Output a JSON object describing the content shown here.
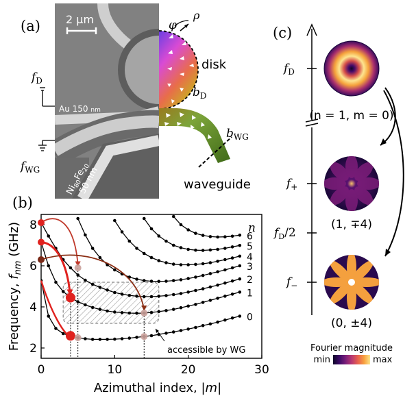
{
  "panel_a": {
    "label": "(a)",
    "scale_bar": "2 μm",
    "phi": "φ",
    "rho": "ρ",
    "disk": "disk",
    "b_d": "b",
    "b_d_sub": "D",
    "b_wg": "b",
    "b_wg_sub": "WG",
    "f_d": "f",
    "f_d_sub": "D",
    "f_wg": "f",
    "f_wg_sub": "WG",
    "au": "Au 150",
    "au_unit": "nm",
    "nife_1": "Ni",
    "nife_1_sub": "80",
    "nife_2": "Fe",
    "nife_2_sub": "20",
    "nife_thick": "50 nm",
    "waveguide": "waveguide"
  },
  "panel_b": {
    "label": "(b)",
    "accessible": "accessible by WG",
    "n_header": "n",
    "branch_labels": [
      "6",
      "5",
      "4",
      "3",
      "2",
      "1",
      "0"
    ]
  },
  "panel_c": {
    "label": "(c)",
    "f_d": "f",
    "f_d_sub": "D",
    "f_plus": "f",
    "f_plus_sub": "+",
    "f_half": "f",
    "f_half_sub": "D",
    "f_half_tail": "/2",
    "f_minus": "f",
    "f_minus_sub": "−",
    "mode1": "(n = 1, m = 0)",
    "mode2": "(1, ∓4)",
    "mode3": "(0, ±4)",
    "colorbar_title": "Fourier magnitude",
    "colorbar_min": "min",
    "colorbar_max": "max",
    "colorbar_colors": [
      "#0d0628",
      "#3c0a66",
      "#7b1f7a",
      "#b73771",
      "#e7604e",
      "#f8a13f",
      "#fbe38a"
    ]
  },
  "chart_data": {
    "type": "line",
    "xlabel": "Azimuthal index, |m|",
    "ylabel": "Frequency, f_nm (GHz)",
    "xlim": [
      0,
      30
    ],
    "ylim": [
      1.5,
      8.5
    ],
    "x_ticks": [
      0,
      10,
      20,
      30
    ],
    "y_ticks": [
      2,
      4,
      6,
      8
    ],
    "series": [
      {
        "name": "0",
        "x": [
          0,
          1,
          2,
          3,
          4,
          5,
          6,
          7,
          8,
          9,
          10,
          11,
          12,
          13,
          14,
          15,
          16,
          17,
          18,
          19,
          20,
          21,
          22,
          23,
          24,
          25,
          26,
          27
        ],
        "values": [
          5.28,
          3.55,
          2.95,
          2.7,
          2.59,
          2.5,
          2.45,
          2.42,
          2.42,
          2.42,
          2.43,
          2.45,
          2.48,
          2.52,
          2.56,
          2.6,
          2.66,
          2.72,
          2.78,
          2.85,
          2.92,
          3.0,
          3.09,
          3.17,
          3.26,
          3.36,
          3.46,
          3.55
        ]
      },
      {
        "name": "1",
        "x": [
          0,
          1,
          2,
          3,
          4,
          5,
          6,
          7,
          8,
          9,
          10,
          11,
          12,
          13,
          14,
          15,
          16,
          17,
          18,
          19,
          20,
          21,
          22,
          23,
          24,
          25,
          26,
          27
        ],
        "values": [
          7.15,
          6.0,
          5.2,
          4.75,
          4.45,
          4.25,
          4.1,
          3.97,
          3.88,
          3.8,
          3.75,
          3.72,
          3.7,
          3.69,
          3.7,
          3.73,
          3.77,
          3.82,
          3.88,
          3.96,
          4.04,
          4.12,
          4.22,
          4.32,
          4.42,
          4.52,
          4.62,
          4.72
        ]
      },
      {
        "name": "2",
        "x": [
          0,
          1,
          2,
          3,
          4,
          5,
          6,
          7,
          8,
          9,
          10,
          11,
          12,
          13,
          14,
          15,
          16,
          17,
          18,
          19,
          20,
          21,
          22,
          23,
          24,
          25,
          26,
          27
        ],
        "values": [
          8.1,
          7.45,
          6.85,
          6.3,
          5.9,
          5.55,
          5.3,
          5.1,
          4.95,
          4.82,
          4.7,
          4.62,
          4.56,
          4.52,
          4.5,
          4.5,
          4.52,
          4.55,
          4.6,
          4.65,
          4.72,
          4.8,
          4.88,
          4.97,
          5.06,
          5.16,
          5.26,
          5.36
        ]
      },
      {
        "name": "3",
        "x": [
          5,
          6,
          7,
          8,
          9,
          10,
          11,
          12,
          13,
          14,
          15,
          16,
          17,
          18,
          19,
          20,
          21,
          22,
          23,
          24,
          25,
          26,
          27
        ],
        "values": [
          8.3,
          7.5,
          6.85,
          6.4,
          6.05,
          5.8,
          5.6,
          5.45,
          5.35,
          5.28,
          5.25,
          5.24,
          5.25,
          5.28,
          5.32,
          5.38,
          5.45,
          5.53,
          5.62,
          5.71,
          5.8,
          5.9,
          6.0
        ]
      },
      {
        "name": "4",
        "x": [
          10,
          11,
          12,
          13,
          14,
          15,
          16,
          17,
          18,
          19,
          20,
          21,
          22,
          23,
          24,
          25,
          26,
          27
        ],
        "values": [
          8.2,
          7.65,
          7.2,
          6.85,
          6.6,
          6.4,
          6.25,
          6.15,
          6.08,
          6.05,
          6.05,
          6.07,
          6.1,
          6.15,
          6.22,
          6.3,
          6.38,
          6.47
        ]
      },
      {
        "name": "5",
        "x": [
          14,
          15,
          16,
          17,
          18,
          19,
          20,
          21,
          22,
          23,
          24,
          25,
          26,
          27
        ],
        "values": [
          8.3,
          7.8,
          7.45,
          7.2,
          7.0,
          6.88,
          6.8,
          6.76,
          6.75,
          6.77,
          6.8,
          6.85,
          6.92,
          6.99
        ]
      },
      {
        "name": "6",
        "x": [
          18,
          19,
          20,
          21,
          22,
          23,
          24,
          25,
          26,
          27
        ],
        "values": [
          8.4,
          8.0,
          7.75,
          7.58,
          7.48,
          7.42,
          7.4,
          7.41,
          7.44,
          7.49
        ]
      }
    ],
    "highlighted_points": [
      {
        "x": 0,
        "y": 8.1,
        "color": "#e0221f"
      },
      {
        "x": 0,
        "y": 7.15,
        "color": "#e0221f"
      },
      {
        "x": 0,
        "y": 6.3,
        "color": "#7a2a18"
      },
      {
        "x": 4,
        "y": 4.45,
        "color": "#e0221f"
      },
      {
        "x": 4,
        "y": 2.59,
        "color": "#e0221f"
      },
      {
        "x": 5,
        "y": 5.9,
        "color": "#c9a09a"
      },
      {
        "x": 5,
        "y": 2.5,
        "color": "#c9a09a"
      },
      {
        "x": 14,
        "y": 3.7,
        "color": "#c9a09a"
      },
      {
        "x": 14,
        "y": 2.56,
        "color": "#c9a09a"
      }
    ],
    "accessible_region": {
      "x": [
        3,
        16
      ],
      "y": [
        3.2,
        5.2
      ]
    },
    "grid": false
  }
}
